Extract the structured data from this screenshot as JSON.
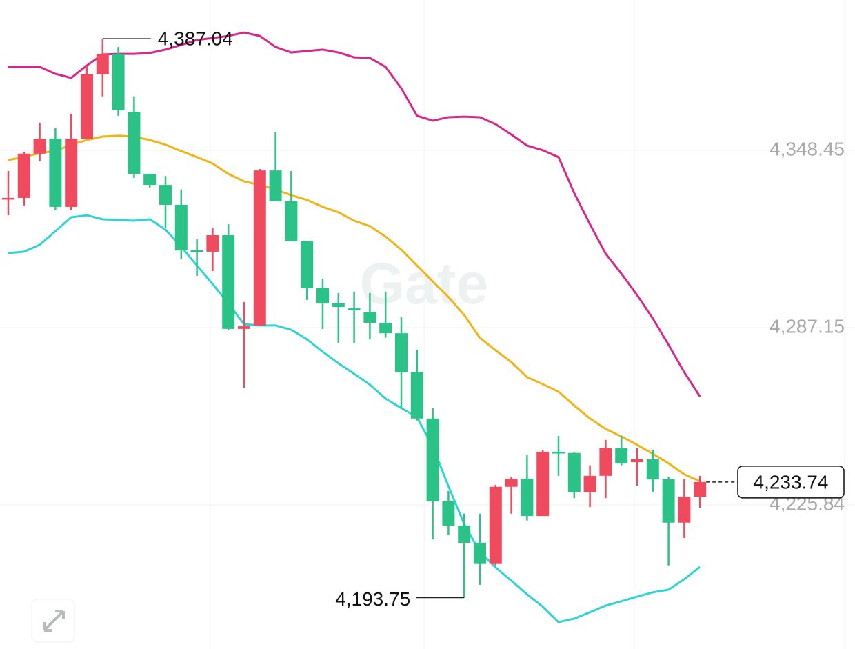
{
  "chart_data": {
    "type": "candlestick",
    "watermark": "Gate",
    "up_color": "#f04a5e",
    "down_color": "#2bc287",
    "open": [
      4331.8,
      4332.0,
      4347.3,
      4352.5,
      4328.9,
      4352.5,
      4374.7,
      4381.8,
      4361.8,
      4340.3,
      4336.5,
      4329.6,
      4313.9,
      4313.4,
      4319.1,
      4286.7,
      4287.9,
      4341.5,
      4330.8,
      4317.0,
      4300.8,
      4295.5,
      4293.8,
      4292.6,
      4288.8,
      4285.2,
      4271.7,
      4255.7,
      4227.1,
      4218.7,
      4212.7,
      4205.4,
      4232.1,
      4234.9,
      4222.0,
      4244.2,
      4243.8,
      4230.2,
      4235.9,
      4245.4,
      4240.6,
      4241.6,
      4234.7,
      4219.7,
      4228.7
    ],
    "high": [
      4341.3,
      4348.0,
      4358.0,
      4356.1,
      4361.1,
      4377.8,
      4387.04,
      4384.2,
      4367.1,
      4340.3,
      4339.6,
      4334.9,
      4317.7,
      4321.7,
      4322.9,
      4296.0,
      4342.0,
      4354.7,
      4341.3,
      4317.0,
      4303.9,
      4299.1,
      4299.6,
      4299.1,
      4299.6,
      4290.7,
      4279.5,
      4259.3,
      4230.6,
      4222.8,
      4222.8,
      4232.8,
      4235.4,
      4243.0,
      4244.9,
      4249.7,
      4244.2,
      4239.5,
      4248.3,
      4249.7,
      4245.4,
      4244.9,
      4235.4,
      4234.7,
      4235.9
    ],
    "low": [
      4326.0,
      4329.4,
      4344.6,
      4327.7,
      4327.7,
      4352.5,
      4367.1,
      4360.4,
      4338.9,
      4335.6,
      4321.7,
      4310.8,
      4305.0,
      4306.7,
      4286.4,
      4266.4,
      4287.9,
      4330.8,
      4317.0,
      4296.7,
      4286.7,
      4281.9,
      4281.9,
      4283.1,
      4283.6,
      4259.3,
      4255.0,
      4213.9,
      4215.4,
      4193.75,
      4198.2,
      4204.9,
      4222.8,
      4220.4,
      4222.0,
      4235.9,
      4228.2,
      4225.1,
      4228.2,
      4239.5,
      4232.3,
      4230.4,
      4204.9,
      4214.4,
      4224.9
    ],
    "close": [
      4332.0,
      4347.3,
      4352.5,
      4328.9,
      4352.5,
      4374.7,
      4381.8,
      4362.3,
      4340.3,
      4336.5,
      4329.6,
      4313.9,
      4313.4,
      4319.1,
      4286.7,
      4287.6,
      4341.5,
      4330.8,
      4317.0,
      4300.8,
      4295.5,
      4294.3,
      4293.1,
      4288.8,
      4285.2,
      4271.7,
      4255.7,
      4227.1,
      4218.7,
      4212.7,
      4205.4,
      4232.1,
      4234.9,
      4222.0,
      4244.2,
      4243.8,
      4230.2,
      4235.9,
      4245.4,
      4240.2,
      4241.6,
      4234.7,
      4219.7,
      4228.7,
      4233.74
    ],
    "series": [
      {
        "color": "#d9268a",
        "values": [
          4377.3,
          4377.3,
          4377.3,
          4374.9,
          4373.5,
          4377.8,
          4381.6,
          4381.8,
          4381.8,
          4382.1,
          4383.3,
          4384.9,
          4386.6,
          4387.3,
          4388.0,
          4389.2,
          4388.0,
          4384.2,
          4382.3,
          4382.8,
          4383.3,
          4382.3,
          4380.6,
          4380.4,
          4377.3,
          4369.9,
          4360.4,
          4358.7,
          4359.9,
          4360.1,
          4359.9,
          4357.5,
          4353.9,
          4350.1,
          4348.5,
          4346.1,
          4333.7,
          4322.9,
          4312.7,
          4305.8,
          4298.4,
          4290.3,
          4281.2,
          4271.7,
          4263.3
        ]
      },
      {
        "color": "#f0b415",
        "values": [
          4345.1,
          4346.1,
          4347.5,
          4348.2,
          4350.4,
          4352.0,
          4353.2,
          4353.5,
          4353.2,
          4352.0,
          4350.4,
          4348.2,
          4346.1,
          4343.9,
          4340.3,
          4337.7,
          4336.5,
          4334.9,
          4332.9,
          4331.3,
          4328.9,
          4327.0,
          4324.1,
          4322.2,
          4318.6,
          4314.1,
          4308.6,
          4303.1,
          4297.7,
          4291.5,
          4283.6,
          4279.3,
          4275.2,
          4270.0,
          4267.6,
          4265.0,
          4260.2,
          4255.7,
          4252.1,
          4249.5,
          4246.6,
          4243.5,
          4240.2,
          4236.4,
          4234.0
        ]
      },
      {
        "color": "#2fd3d6",
        "values": [
          4312.9,
          4313.4,
          4315.8,
          4320.5,
          4325.3,
          4326.0,
          4324.6,
          4324.4,
          4324.1,
          4324.6,
          4321.0,
          4315.1,
          4308.6,
          4302.2,
          4295.5,
          4288.3,
          4287.9,
          4287.9,
          4286.4,
          4283.1,
          4278.8,
          4274.8,
          4271.2,
          4267.4,
          4262.6,
          4259.3,
          4256.2,
          4245.9,
          4232.3,
          4219.2,
          4209.6,
          4204.2,
          4199.6,
          4194.9,
          4190.6,
          4185.3,
          4186.5,
          4188.7,
          4191.0,
          4192.5,
          4194.1,
          4195.6,
          4196.5,
          4200.1,
          4204.4
        ]
      }
    ],
    "high_label": "4,387.04",
    "low_label": "4,193.75",
    "last_label": "4,233.74",
    "ylim": [
      4175.99,
      4400.44
    ],
    "yticks": [
      {
        "value": 4225.84,
        "label": "4,225.84"
      },
      {
        "value": 4287.15,
        "label": "4,287.15"
      },
      {
        "value": 4348.45,
        "label": "4,348.45"
      }
    ],
    "grid": true
  }
}
